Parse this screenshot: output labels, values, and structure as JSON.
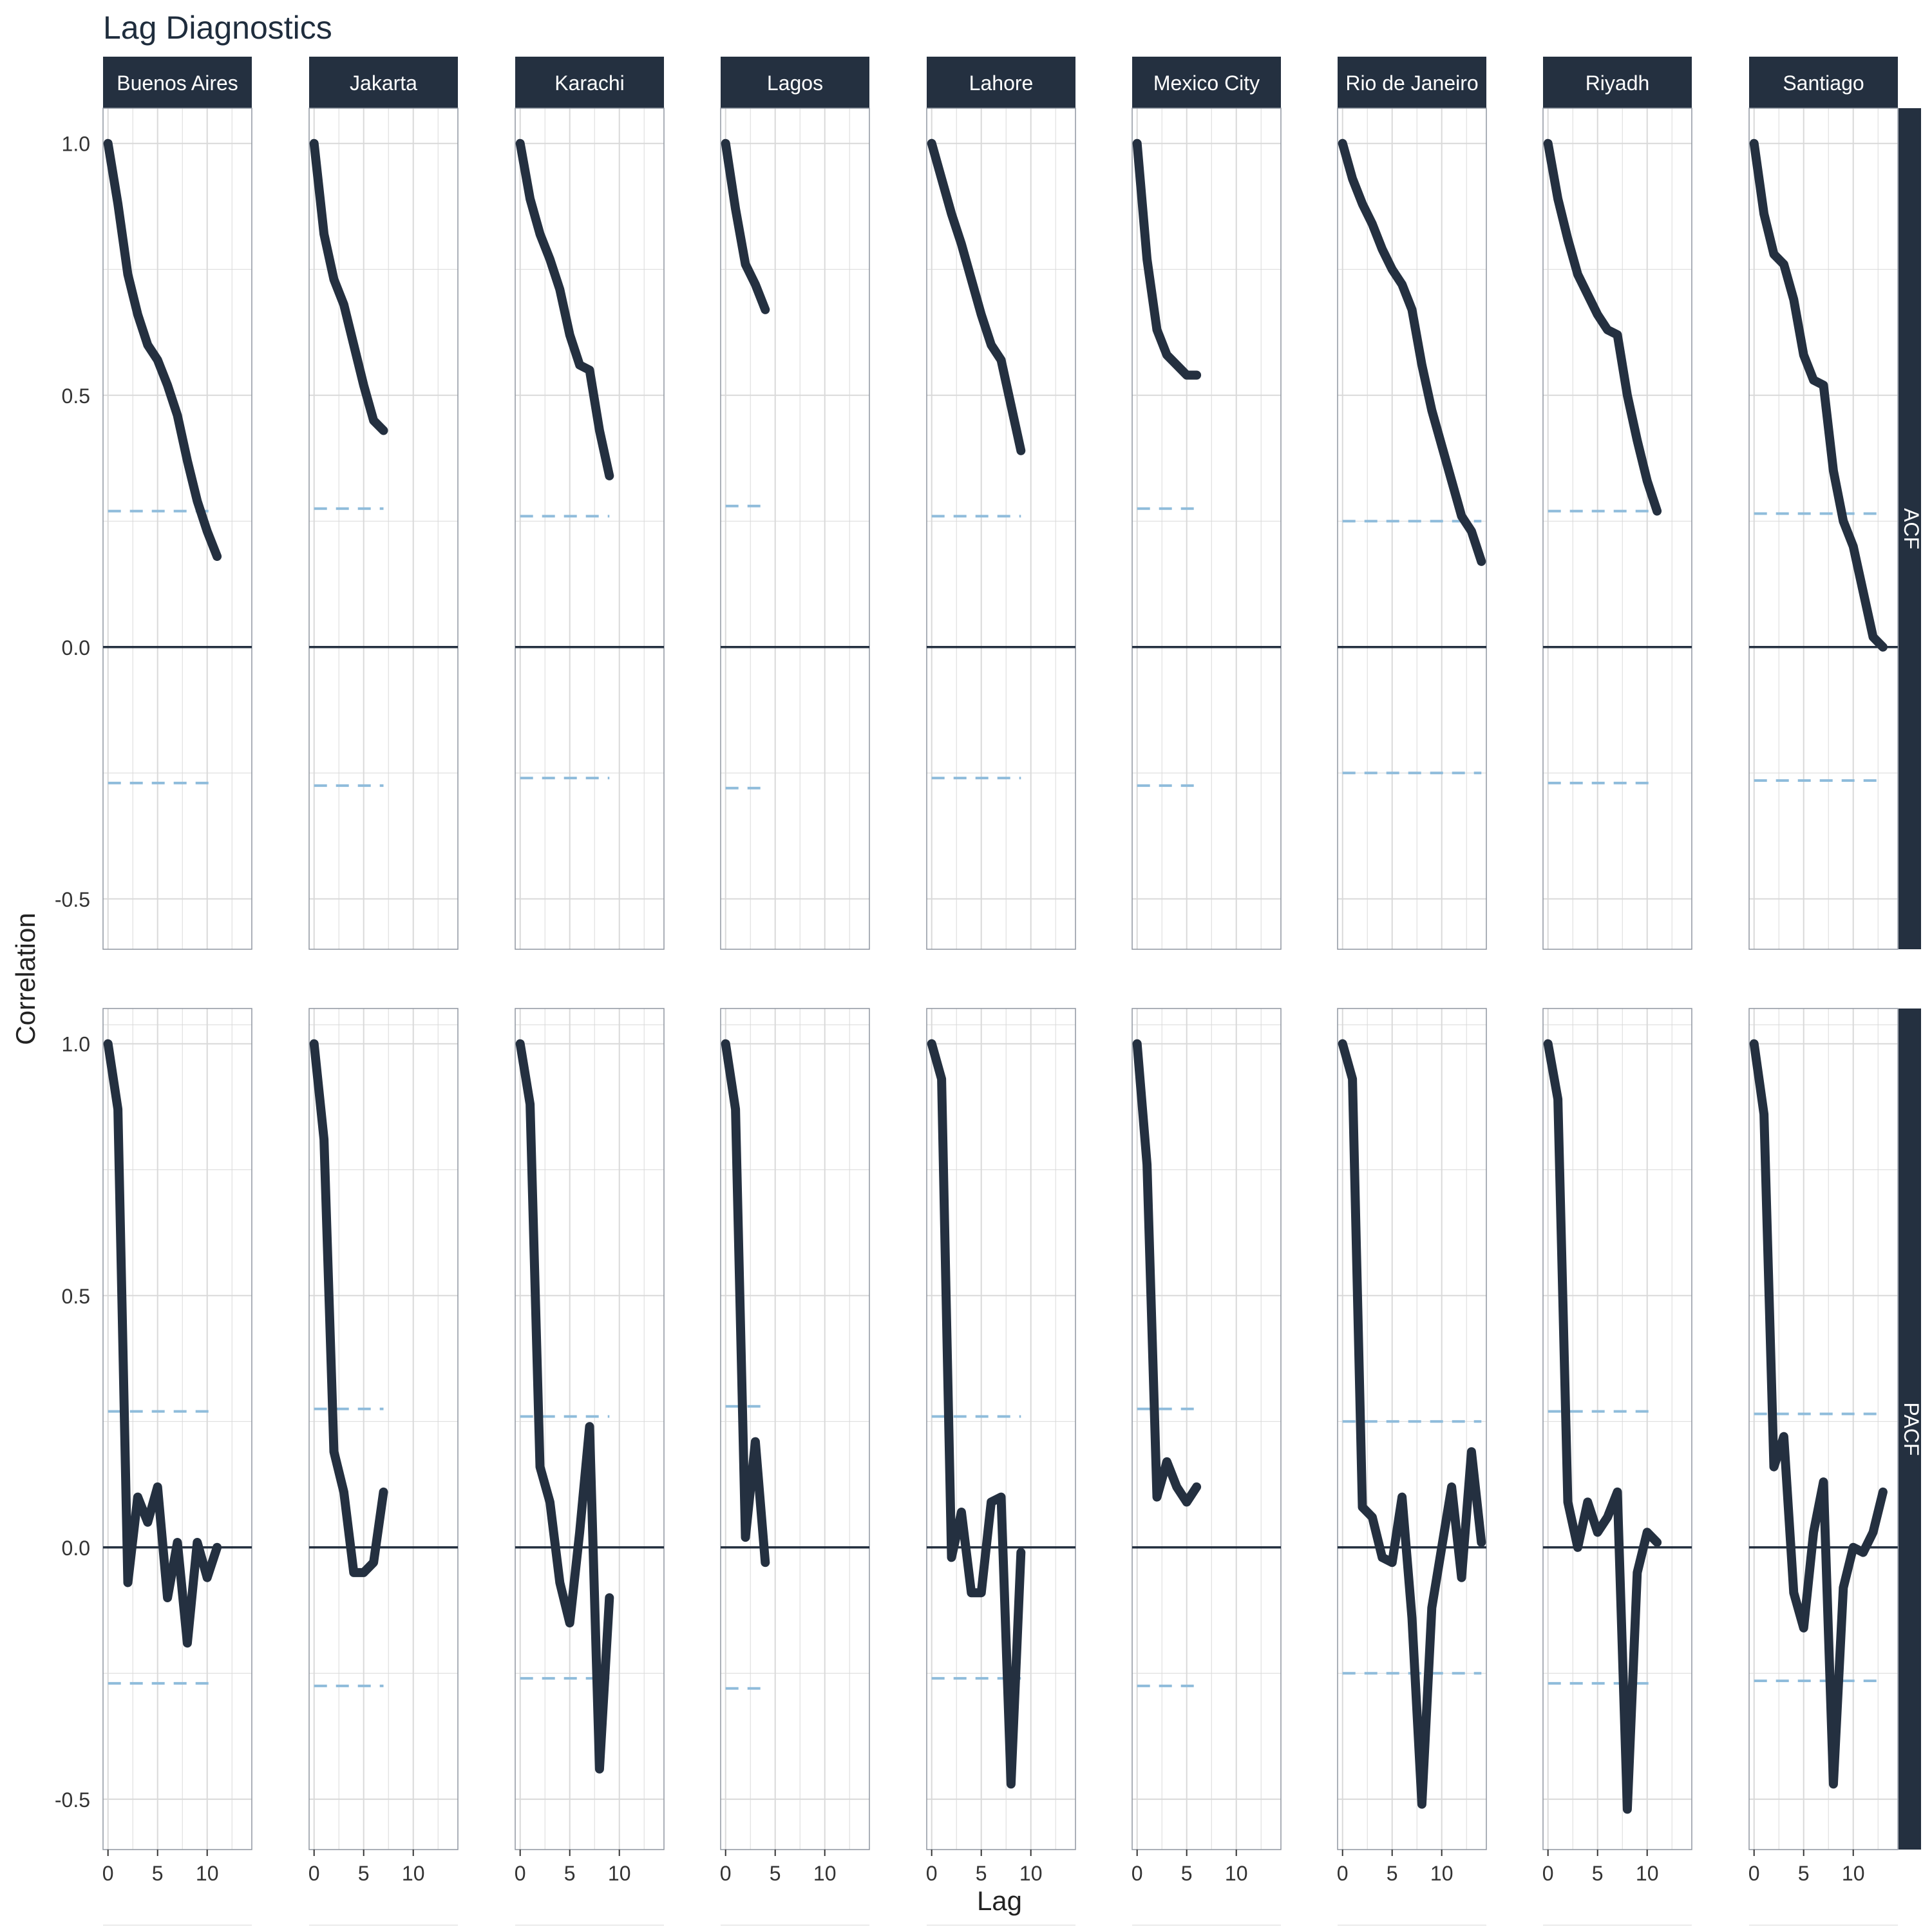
{
  "chart_data": {
    "type": "line",
    "title": "Lag Diagnostics",
    "xlabel": "Lag",
    "ylabel": "Correlation",
    "xlim": [
      -0.5,
      14.5
    ],
    "ylim": [
      -0.6,
      1.07
    ],
    "xticks": [
      0,
      5,
      10
    ],
    "xtick_labels": [
      "0",
      "5",
      "10"
    ],
    "yticks": [
      -0.5,
      0.0,
      0.5,
      1.0
    ],
    "ytick_labels": [
      "-0.5",
      "0.0",
      "0.5",
      "1.0"
    ],
    "grid": true,
    "colors": {
      "line": "#243040",
      "strip": "#243040",
      "confidence": "#8fbcdb",
      "zero_line": "#243040",
      "grid": "#d9d9d9",
      "panel_border": "#8f96a0",
      "title": "#1f2d3d"
    },
    "rows": [
      "ACF",
      "PACF"
    ],
    "columns": [
      {
        "city": "Buenos Aires",
        "ci": 0.27,
        "acf": [
          1.0,
          0.88,
          0.74,
          0.66,
          0.6,
          0.57,
          0.52,
          0.46,
          0.37,
          0.29,
          0.23,
          0.18
        ],
        "pacf": [
          1.0,
          0.87,
          -0.07,
          0.1,
          0.05,
          0.12,
          -0.1,
          0.01,
          -0.19,
          0.01,
          -0.06,
          0.0
        ]
      },
      {
        "city": "Jakarta",
        "ci": 0.275,
        "acf": [
          1.0,
          0.82,
          0.73,
          0.68,
          0.6,
          0.52,
          0.45,
          0.43
        ],
        "pacf": [
          1.0,
          0.81,
          0.19,
          0.11,
          -0.05,
          -0.05,
          -0.03,
          0.11
        ]
      },
      {
        "city": "Karachi",
        "ci": 0.26,
        "acf": [
          1.0,
          0.89,
          0.82,
          0.77,
          0.71,
          0.62,
          0.56,
          0.55,
          0.43,
          0.34
        ],
        "pacf": [
          1.0,
          0.88,
          0.16,
          0.09,
          -0.07,
          -0.15,
          0.03,
          0.24,
          -0.44,
          -0.1
        ]
      },
      {
        "city": "Lagos",
        "ci": 0.28,
        "acf": [
          1.0,
          0.87,
          0.76,
          0.72,
          0.67
        ],
        "pacf": [
          1.0,
          0.87,
          0.02,
          0.21,
          -0.03
        ]
      },
      {
        "city": "Lahore",
        "ci": 0.26,
        "acf": [
          1.0,
          0.93,
          0.86,
          0.8,
          0.73,
          0.66,
          0.6,
          0.57,
          0.48,
          0.39
        ],
        "pacf": [
          1.0,
          0.93,
          -0.02,
          0.07,
          -0.09,
          -0.09,
          0.09,
          0.1,
          -0.47,
          -0.01
        ]
      },
      {
        "city": "Mexico City",
        "ci": 0.275,
        "acf": [
          1.0,
          0.77,
          0.63,
          0.58,
          0.56,
          0.54,
          0.54
        ],
        "pacf": [
          1.0,
          0.76,
          0.1,
          0.17,
          0.12,
          0.09,
          0.12
        ]
      },
      {
        "city": "Rio de Janeiro",
        "ci": 0.25,
        "acf": [
          1.0,
          0.93,
          0.88,
          0.84,
          0.79,
          0.75,
          0.72,
          0.67,
          0.56,
          0.47,
          0.4,
          0.33,
          0.26,
          0.23,
          0.17
        ],
        "pacf": [
          1.0,
          0.93,
          0.08,
          0.06,
          -0.02,
          -0.03,
          0.1,
          -0.14,
          -0.51,
          -0.12,
          0.0,
          0.12,
          -0.06,
          0.19,
          0.01
        ]
      },
      {
        "city": "Riyadh",
        "ci": 0.27,
        "acf": [
          1.0,
          0.89,
          0.81,
          0.74,
          0.7,
          0.66,
          0.63,
          0.62,
          0.5,
          0.41,
          0.33,
          0.27
        ],
        "pacf": [
          1.0,
          0.89,
          0.09,
          0.0,
          0.09,
          0.03,
          0.06,
          0.11,
          -0.52,
          -0.05,
          0.03,
          0.01
        ]
      },
      {
        "city": "Santiago",
        "ci": 0.265,
        "acf": [
          1.0,
          0.86,
          0.78,
          0.76,
          0.69,
          0.58,
          0.53,
          0.52,
          0.35,
          0.25,
          0.2,
          0.11,
          0.02,
          0.0
        ],
        "pacf": [
          1.0,
          0.86,
          0.16,
          0.22,
          -0.09,
          -0.16,
          0.03,
          0.13,
          -0.47,
          -0.08,
          0.0,
          -0.01,
          0.03,
          0.11
        ]
      }
    ]
  }
}
